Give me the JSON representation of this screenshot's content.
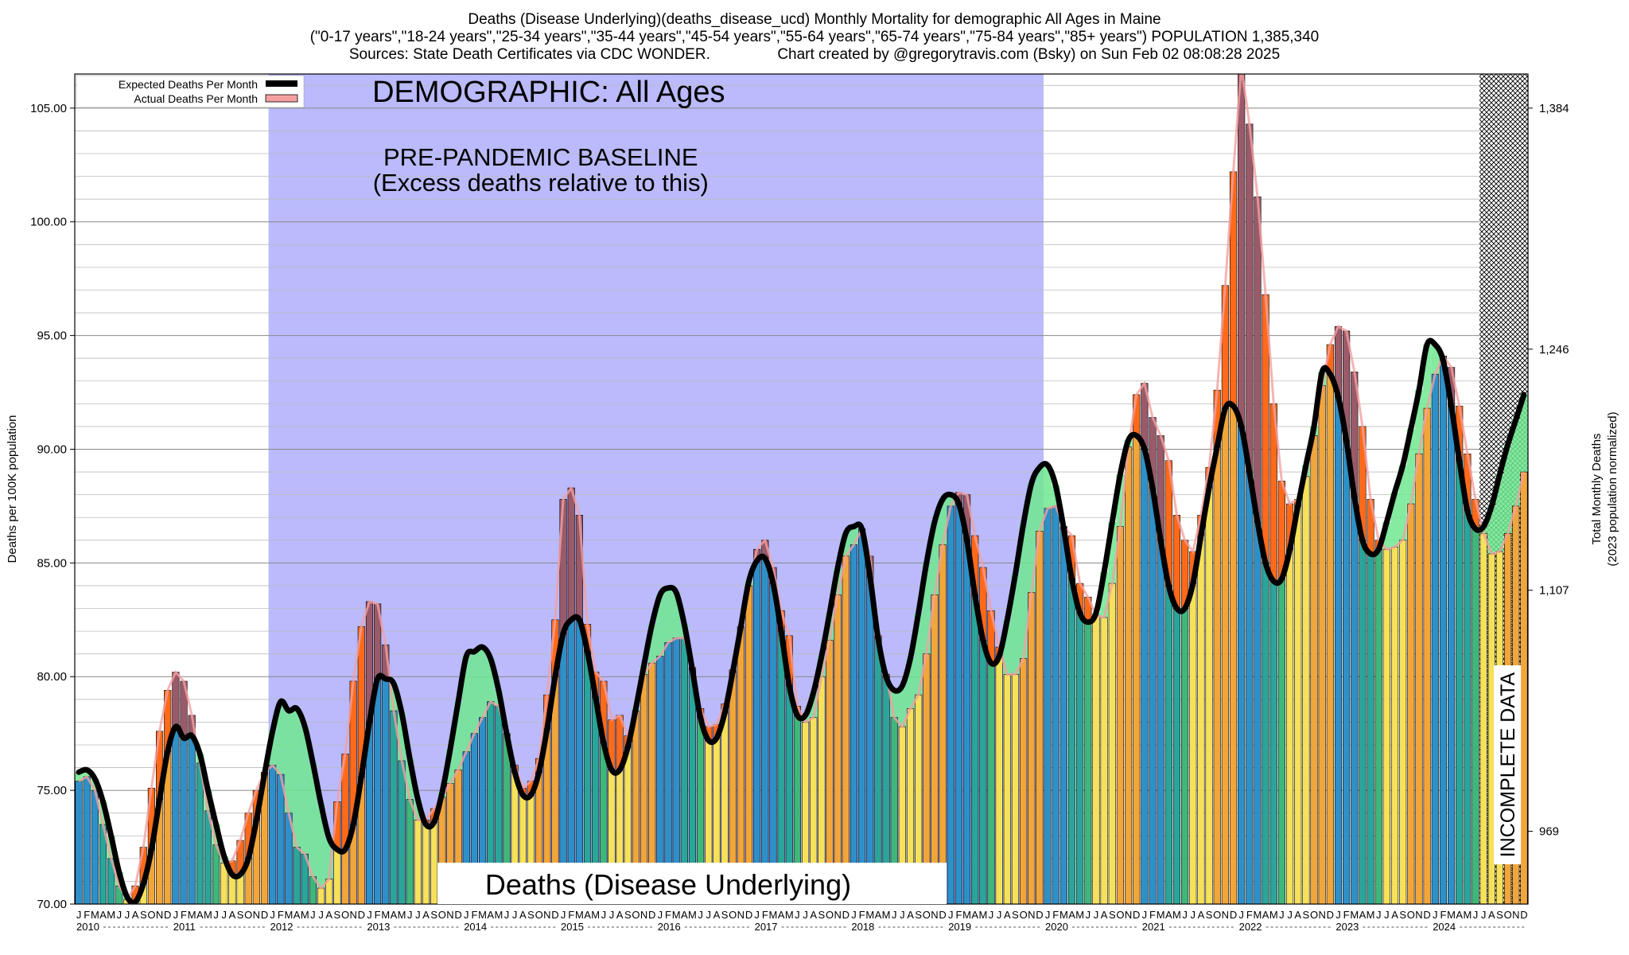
{
  "header": {
    "line1": "Deaths (Disease Underlying)(deaths_disease_ucd) Monthly Mortality for demographic All Ages in Maine",
    "line2": "(\"0-17 years\",\"18-24 years\",\"25-34 years\",\"35-44 years\",\"45-54 years\",\"55-64 years\",\"65-74 years\",\"75-84 years\",\"85+ years\") POPULATION 1,385,340",
    "line3": "Sources: State Death Certificates via CDC WONDER.                Chart created by @gregorytravis.com (Bsky) on Sun Feb 02 08:08:28 2025"
  },
  "chart_data": {
    "type": "bar",
    "ylabel": "Deaths per 100K population",
    "ylabel_right_1": "Total Monthly Deaths",
    "ylabel_right_2": "(2023 population normalized)",
    "ylim": [
      70,
      106.5
    ],
    "yticks": [
      70,
      75,
      80,
      85,
      90,
      95,
      100,
      105
    ],
    "ytick_labels": [
      "70.00",
      "75.00",
      "80.00",
      "85.00",
      "90.00",
      "95.00",
      "100.00",
      "105.00"
    ],
    "right_ticks": [
      {
        "value": 73.2,
        "label": "969"
      },
      {
        "value": 83.8,
        "label": "1,107"
      },
      {
        "value": 94.4,
        "label": "1,246"
      },
      {
        "value": 105.0,
        "label": "1,384"
      }
    ],
    "grid": true,
    "legend_position": "top-left",
    "legend": [
      {
        "label": "Expected Deaths Per Month",
        "color": "#000000"
      },
      {
        "label": "Actual Deaths Per Month",
        "color": "#f4a0a0"
      }
    ],
    "years": [
      "2010",
      "2011",
      "2012",
      "2013",
      "2014",
      "2015",
      "2016",
      "2017",
      "2018",
      "2019",
      "2020",
      "2021",
      "2022",
      "2023",
      "2024"
    ],
    "month_letters": [
      "J",
      "F",
      "M",
      "A",
      "M",
      "J",
      "J",
      "A",
      "S",
      "O",
      "N",
      "D"
    ],
    "actual": [
      75.4,
      75.6,
      75.0,
      73.5,
      72.0,
      70.8,
      70.2,
      70.8,
      72.5,
      75.1,
      77.6,
      79.4,
      80.2,
      79.8,
      78.3,
      76.2,
      74.1,
      72.6,
      71.8,
      71.9,
      72.8,
      74.0,
      75.0,
      75.8,
      76.1,
      75.7,
      74.0,
      72.5,
      72.2,
      71.2,
      70.7,
      71.1,
      74.5,
      76.6,
      79.8,
      82.2,
      83.3,
      83.2,
      81.4,
      78.5,
      76.3,
      74.6,
      73.7,
      73.7,
      74.2,
      74.7,
      75.3,
      75.9,
      76.7,
      77.5,
      78.2,
      78.9,
      78.7,
      77.5,
      76.1,
      75.1,
      75.4,
      76.4,
      79.2,
      82.5,
      87.8,
      88.3,
      87.1,
      82.3,
      80.2,
      79.8,
      78.1,
      78.3,
      77.4,
      78.5,
      80.1,
      80.6,
      80.9,
      81.5,
      81.7,
      81.7,
      80.4,
      78.6,
      77.8,
      77.9,
      78.8,
      80.3,
      82.2,
      84.0,
      85.6,
      86.0,
      84.8,
      82.9,
      81.8,
      78.7,
      78.0,
      78.2,
      80.0,
      81.6,
      83.6,
      85.3,
      85.8,
      86.5,
      85.3,
      81.8,
      80.1,
      78.2,
      77.8,
      78.6,
      79.2,
      81.0,
      83.6,
      85.8,
      87.5,
      88.1,
      88.0,
      86.2,
      84.8,
      82.9,
      81.3,
      80.1,
      80.1,
      80.8,
      83.7,
      86.4,
      87.4,
      87.5,
      86.6,
      86.2,
      84.1,
      83.5,
      82.7,
      82.6,
      84.1,
      86.6,
      90.1,
      92.4,
      92.9,
      91.4,
      90.6,
      89.5,
      87.1,
      86.0,
      85.5,
      87.1,
      89.2,
      92.6,
      97.2,
      102.2,
      106.8,
      104.3,
      101.1,
      96.8,
      92.0,
      88.6,
      87.6,
      87.8,
      88.8,
      90.6,
      92.8,
      94.6,
      95.4,
      95.2,
      93.4,
      91.0,
      87.8,
      86.0,
      85.6,
      85.7,
      86.0,
      87.6,
      89.8,
      91.8,
      93.3,
      94.1,
      93.6,
      91.9,
      89.8,
      87.8,
      86.3,
      85.4,
      85.5,
      86.3,
      87.5,
      89.0
    ],
    "expected": [
      75.8,
      75.9,
      75.5,
      74.5,
      73.0,
      71.4,
      70.3,
      70.1,
      70.9,
      72.4,
      74.6,
      76.7,
      77.8,
      77.3,
      77.4,
      76.6,
      75.0,
      73.5,
      72.1,
      71.3,
      71.3,
      72.0,
      73.7,
      75.7,
      77.6,
      78.9,
      78.5,
      78.6,
      77.8,
      76.2,
      74.4,
      72.9,
      72.4,
      72.4,
      73.5,
      75.6,
      78.0,
      79.9,
      79.9,
      79.7,
      78.4,
      76.4,
      74.6,
      73.5,
      73.6,
      74.9,
      76.8,
      78.9,
      80.9,
      81.1,
      81.3,
      80.8,
      79.4,
      77.5,
      75.8,
      74.8,
      74.8,
      75.8,
      77.7,
      80.0,
      81.9,
      82.5,
      82.5,
      81.1,
      79.1,
      77.1,
      75.9,
      75.9,
      76.9,
      78.6,
      80.5,
      82.3,
      83.6,
      83.9,
      83.7,
      82.3,
      80.3,
      78.2,
      77.2,
      77.3,
      78.4,
      80.2,
      82.2,
      84.2,
      85.1,
      85.2,
      84.1,
      82.0,
      79.6,
      78.3,
      78.3,
      79.3,
      80.9,
      82.8,
      84.8,
      86.3,
      86.6,
      86.5,
      84.4,
      81.7,
      80.0,
      79.4,
      79.6,
      80.8,
      82.8,
      85.0,
      86.8,
      87.8,
      88.0,
      87.6,
      86.0,
      83.6,
      81.6,
      80.6,
      80.9,
      82.5,
      84.5,
      86.7,
      88.5,
      89.2,
      89.3,
      88.4,
      86.5,
      84.3,
      82.8,
      82.4,
      82.8,
      84.6,
      86.8,
      88.9,
      90.4,
      90.6,
      90.0,
      88.3,
      86.0,
      84.0,
      83.0,
      83.0,
      84.1,
      86.2,
      88.3,
      90.1,
      91.8,
      91.9,
      91.0,
      89.0,
      86.8,
      85.0,
      84.2,
      84.3,
      85.6,
      87.5,
      89.3,
      91.0,
      93.4,
      93.3,
      92.3,
      90.4,
      87.9,
      86.0,
      85.4,
      85.6,
      86.8,
      88.1,
      89.3,
      90.9,
      92.6,
      94.6,
      94.6,
      93.9,
      91.9,
      89.5,
      87.3,
      86.5,
      86.6,
      87.5,
      88.9,
      90.2,
      91.3,
      92.4
    ],
    "baseline_label": "PRE-PANDEMIC BASELINE",
    "baseline_sub": "(Excess deaths relative to this)",
    "baseline_start": "2012-01",
    "baseline_end": "2019-12",
    "demographic_label": "DEMOGRAPHIC: All Ages",
    "metric_label": "Deaths (Disease Underlying)",
    "incomplete_label": "INCOMPLETE DATA",
    "incomplete_start": "2024-07",
    "colors": {
      "bar_blue": "#2e90c8",
      "bar_teal": "#2aa59a",
      "bar_green": "#3fb67a",
      "bar_yellow": "#f6e15a",
      "bar_orange": "#f1a63a",
      "excess": "#ff6a1a",
      "below_expected": "#6ee88f",
      "baseline_region": "#babafc",
      "expected_line": "#000000",
      "actual_band": "#f4a0a0"
    }
  }
}
